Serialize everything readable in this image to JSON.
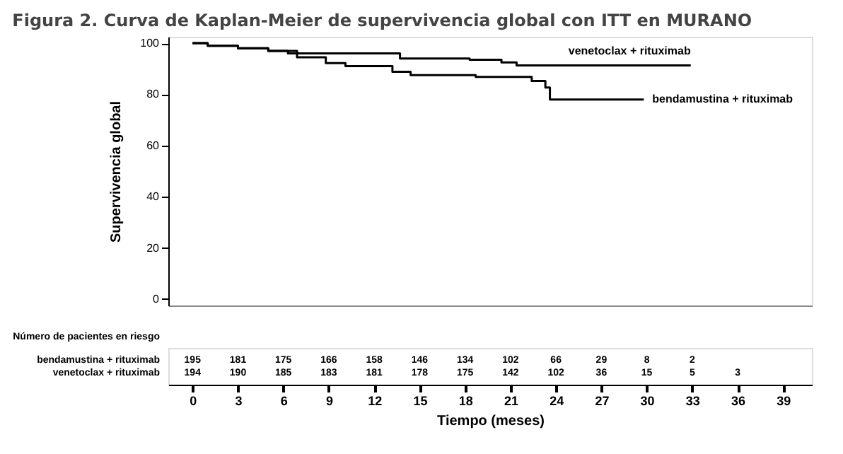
{
  "chart_data": {
    "type": "step",
    "title": "Figura 2. Curva de Kaplan-Meier de supervivencia global con ITT en MURANO",
    "xlabel": "Tiempo (meses)",
    "ylabel": "Supervivencia global",
    "x": [
      0,
      1,
      3,
      5,
      6.9,
      8.8,
      10.1,
      13.2,
      14.4,
      18.7,
      22.4,
      23.3,
      23.6,
      29.8
    ],
    "series": [
      {
        "name": "bendamustina + rituximab",
        "color": "#000000",
        "values": [
          100,
          99,
          98,
          97,
          94.5,
          92.2,
          91,
          88.8,
          87.5,
          86.8,
          85.2,
          82.7,
          78,
          78
        ]
      },
      {
        "name": "venetoclax + rituximab",
        "color": "#000000",
        "x": [
          0,
          1,
          3,
          5,
          6.3,
          13.7,
          18.3,
          20.4,
          21.4,
          32.9
        ],
        "values": [
          100,
          99,
          98,
          97,
          96,
          94,
          93.5,
          92.5,
          91.3,
          91.3
        ]
      }
    ],
    "xlim": [
      -1.6,
      40.9
    ],
    "ylim": [
      -2.5,
      102.5
    ],
    "xticks": [
      0,
      3,
      6,
      9,
      12,
      15,
      18,
      21,
      24,
      27,
      30,
      33,
      36,
      39
    ],
    "yticks": [
      0,
      20,
      40,
      60,
      80,
      100
    ],
    "grid": false,
    "legend": false,
    "line_style": "solid",
    "marker": "none",
    "annotations": [
      "Número de pacientes en riesgo",
      "195 181 175 166 158 146 134 102 66 29 8 2",
      "194 190 185 183 181 178 175 142 102 36 15 5 3"
    ]
  }
}
